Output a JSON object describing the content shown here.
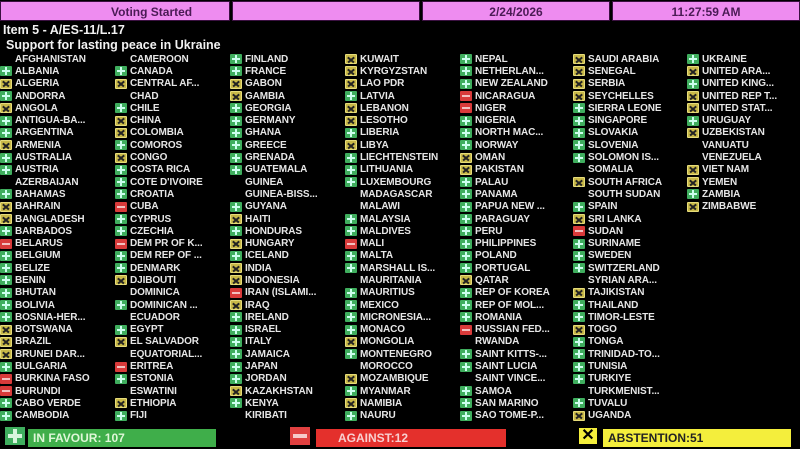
{
  "header": {
    "status": "Voting Started",
    "date": "2/24/2026",
    "time": "11:27:59 AM"
  },
  "item": "Item 5 - A/ES-11/L.17",
  "subject": "Support for lasting peace in Ukraine",
  "colors": {
    "yes": "#3fae5e",
    "no": "#d93a3a",
    "abstain": "#f4ee3c",
    "header": "#ee8cf0"
  },
  "columns": [
    [
      {
        "n": "AFGHANISTAN",
        "v": ""
      },
      {
        "n": "ALBANIA",
        "v": "Y"
      },
      {
        "n": "ALGERIA",
        "v": "A"
      },
      {
        "n": "ANDORRA",
        "v": "Y"
      },
      {
        "n": "ANGOLA",
        "v": "A"
      },
      {
        "n": "ANTIGUA-BA...",
        "v": "Y"
      },
      {
        "n": "ARGENTINA",
        "v": "Y"
      },
      {
        "n": "ARMENIA",
        "v": "A"
      },
      {
        "n": "AUSTRALIA",
        "v": "Y"
      },
      {
        "n": "AUSTRIA",
        "v": "Y"
      },
      {
        "n": "AZERBAIJAN",
        "v": ""
      },
      {
        "n": "BAHAMAS",
        "v": "Y"
      },
      {
        "n": "BAHRAIN",
        "v": "A"
      },
      {
        "n": "BANGLADESH",
        "v": "A"
      },
      {
        "n": "BARBADOS",
        "v": "Y"
      },
      {
        "n": "BELARUS",
        "v": "N"
      },
      {
        "n": "BELGIUM",
        "v": "Y"
      },
      {
        "n": "BELIZE",
        "v": "Y"
      },
      {
        "n": "BENIN",
        "v": "Y"
      },
      {
        "n": "BHUTAN",
        "v": "Y"
      },
      {
        "n": "BOLIVIA",
        "v": "Y"
      },
      {
        "n": "BOSNIA-HER...",
        "v": "Y"
      },
      {
        "n": "BOTSWANA",
        "v": "A"
      },
      {
        "n": "BRAZIL",
        "v": "A"
      },
      {
        "n": "BRUNEI DAR...",
        "v": "A"
      },
      {
        "n": "BULGARIA",
        "v": "Y"
      },
      {
        "n": "BURKINA FASO",
        "v": "N"
      },
      {
        "n": "BURUNDI",
        "v": "N"
      },
      {
        "n": "CABO VERDE",
        "v": "Y"
      },
      {
        "n": "CAMBODIA",
        "v": "Y"
      }
    ],
    [
      {
        "n": "CAMEROON",
        "v": ""
      },
      {
        "n": "CANADA",
        "v": "Y"
      },
      {
        "n": "CENTRAL AF...",
        "v": "A"
      },
      {
        "n": "CHAD",
        "v": ""
      },
      {
        "n": "CHILE",
        "v": "Y"
      },
      {
        "n": "CHINA",
        "v": "A"
      },
      {
        "n": "COLOMBIA",
        "v": "A"
      },
      {
        "n": "COMOROS",
        "v": "Y"
      },
      {
        "n": "CONGO",
        "v": "A"
      },
      {
        "n": "COSTA RICA",
        "v": "Y"
      },
      {
        "n": "COTE D'IVOIRE",
        "v": "Y"
      },
      {
        "n": "CROATIA",
        "v": "Y"
      },
      {
        "n": "CUBA",
        "v": "N"
      },
      {
        "n": "CYPRUS",
        "v": "Y"
      },
      {
        "n": "CZECHIA",
        "v": "Y"
      },
      {
        "n": "DEM PR OF K...",
        "v": "N"
      },
      {
        "n": "DEM REP OF ...",
        "v": "Y"
      },
      {
        "n": "DENMARK",
        "v": "Y"
      },
      {
        "n": "DJIBOUTI",
        "v": "A"
      },
      {
        "n": "DOMINICA",
        "v": ""
      },
      {
        "n": "DOMINICAN ...",
        "v": "Y"
      },
      {
        "n": "ECUADOR",
        "v": ""
      },
      {
        "n": "EGYPT",
        "v": "Y"
      },
      {
        "n": "EL SALVADOR",
        "v": "A"
      },
      {
        "n": "EQUATORIAL...",
        "v": ""
      },
      {
        "n": "ERITREA",
        "v": "N"
      },
      {
        "n": "ESTONIA",
        "v": "Y"
      },
      {
        "n": "ESWATINI",
        "v": ""
      },
      {
        "n": "ETHIOPIA",
        "v": "A"
      },
      {
        "n": "FIJI",
        "v": "Y"
      }
    ],
    [
      {
        "n": "FINLAND",
        "v": "Y"
      },
      {
        "n": "FRANCE",
        "v": "Y"
      },
      {
        "n": "GABON",
        "v": "A"
      },
      {
        "n": "GAMBIA",
        "v": "A"
      },
      {
        "n": "GEORGIA",
        "v": "Y"
      },
      {
        "n": "GERMANY",
        "v": "Y"
      },
      {
        "n": "GHANA",
        "v": "Y"
      },
      {
        "n": "GREECE",
        "v": "Y"
      },
      {
        "n": "GRENADA",
        "v": "Y"
      },
      {
        "n": "GUATEMALA",
        "v": "Y"
      },
      {
        "n": "GUINEA",
        "v": ""
      },
      {
        "n": "GUINEA-BISS...",
        "v": ""
      },
      {
        "n": "GUYANA",
        "v": "Y"
      },
      {
        "n": "HAITI",
        "v": "A"
      },
      {
        "n": "HONDURAS",
        "v": "Y"
      },
      {
        "n": "HUNGARY",
        "v": "A"
      },
      {
        "n": "ICELAND",
        "v": "Y"
      },
      {
        "n": "INDIA",
        "v": "A"
      },
      {
        "n": "INDONESIA",
        "v": "A"
      },
      {
        "n": "IRAN (ISLAMI...",
        "v": "N"
      },
      {
        "n": "IRAQ",
        "v": "A"
      },
      {
        "n": "IRELAND",
        "v": "Y"
      },
      {
        "n": "ISRAEL",
        "v": "Y"
      },
      {
        "n": "ITALY",
        "v": "Y"
      },
      {
        "n": "JAMAICA",
        "v": "Y"
      },
      {
        "n": "JAPAN",
        "v": "Y"
      },
      {
        "n": "JORDAN",
        "v": "Y"
      },
      {
        "n": "KAZAKHSTAN",
        "v": "A"
      },
      {
        "n": "KENYA",
        "v": "Y"
      },
      {
        "n": "KIRIBATI",
        "v": ""
      }
    ],
    [
      {
        "n": "KUWAIT",
        "v": "A"
      },
      {
        "n": "KYRGYZSTAN",
        "v": "A"
      },
      {
        "n": "LAO PDR",
        "v": "A"
      },
      {
        "n": "LATVIA",
        "v": "Y"
      },
      {
        "n": "LEBANON",
        "v": "A"
      },
      {
        "n": "LESOTHO",
        "v": "A"
      },
      {
        "n": "LIBERIA",
        "v": "Y"
      },
      {
        "n": "LIBYA",
        "v": "A"
      },
      {
        "n": "LIECHTENSTEIN",
        "v": "Y"
      },
      {
        "n": "LITHUANIA",
        "v": "Y"
      },
      {
        "n": "LUXEMBOURG",
        "v": "Y"
      },
      {
        "n": "MADAGASCAR",
        "v": ""
      },
      {
        "n": "MALAWI",
        "v": ""
      },
      {
        "n": "MALAYSIA",
        "v": "Y"
      },
      {
        "n": "MALDIVES",
        "v": "Y"
      },
      {
        "n": "MALI",
        "v": "N"
      },
      {
        "n": "MALTA",
        "v": "Y"
      },
      {
        "n": "MARSHALL IS...",
        "v": "Y"
      },
      {
        "n": "MAURITANIA",
        "v": ""
      },
      {
        "n": "MAURITIUS",
        "v": "Y"
      },
      {
        "n": "MEXICO",
        "v": "Y"
      },
      {
        "n": "MICRONESIA...",
        "v": "Y"
      },
      {
        "n": "MONACO",
        "v": "Y"
      },
      {
        "n": "MONGOLIA",
        "v": "A"
      },
      {
        "n": "MONTENEGRO",
        "v": "Y"
      },
      {
        "n": "MOROCCO",
        "v": ""
      },
      {
        "n": "MOZAMBIQUE",
        "v": "A"
      },
      {
        "n": "MYANMAR",
        "v": "Y"
      },
      {
        "n": "NAMIBIA",
        "v": "A"
      },
      {
        "n": "NAURU",
        "v": "Y"
      }
    ],
    [
      {
        "n": "NEPAL",
        "v": "Y"
      },
      {
        "n": "NETHERLAN...",
        "v": "Y"
      },
      {
        "n": "NEW ZEALAND",
        "v": "Y"
      },
      {
        "n": "NICARAGUA",
        "v": "N"
      },
      {
        "n": "NIGER",
        "v": "N"
      },
      {
        "n": "NIGERIA",
        "v": "Y"
      },
      {
        "n": "NORTH MAC...",
        "v": "Y"
      },
      {
        "n": "NORWAY",
        "v": "Y"
      },
      {
        "n": "OMAN",
        "v": "A"
      },
      {
        "n": "PAKISTAN",
        "v": "A"
      },
      {
        "n": "PALAU",
        "v": "Y"
      },
      {
        "n": "PANAMA",
        "v": "Y"
      },
      {
        "n": "PAPUA NEW ...",
        "v": "Y"
      },
      {
        "n": "PARAGUAY",
        "v": "Y"
      },
      {
        "n": "PERU",
        "v": "Y"
      },
      {
        "n": "PHILIPPINES",
        "v": "Y"
      },
      {
        "n": "POLAND",
        "v": "Y"
      },
      {
        "n": "PORTUGAL",
        "v": "Y"
      },
      {
        "n": "QATAR",
        "v": "A"
      },
      {
        "n": "REP OF KOREA",
        "v": "Y"
      },
      {
        "n": "REP OF MOL...",
        "v": "Y"
      },
      {
        "n": "ROMANIA",
        "v": "Y"
      },
      {
        "n": "RUSSIAN FED...",
        "v": "N"
      },
      {
        "n": "RWANDA",
        "v": ""
      },
      {
        "n": "SAINT KITTS-...",
        "v": "Y"
      },
      {
        "n": "SAINT LUCIA",
        "v": "Y"
      },
      {
        "n": "SAINT VINCE...",
        "v": ""
      },
      {
        "n": "SAMOA",
        "v": "Y"
      },
      {
        "n": "SAN MARINO",
        "v": "Y"
      },
      {
        "n": "SAO TOME-P...",
        "v": "Y"
      }
    ],
    [
      {
        "n": "SAUDI ARABIA",
        "v": "A"
      },
      {
        "n": "SENEGAL",
        "v": "A"
      },
      {
        "n": "SERBIA",
        "v": "A"
      },
      {
        "n": "SEYCHELLES",
        "v": "A"
      },
      {
        "n": "SIERRA LEONE",
        "v": "Y"
      },
      {
        "n": "SINGAPORE",
        "v": "Y"
      },
      {
        "n": "SLOVAKIA",
        "v": "Y"
      },
      {
        "n": "SLOVENIA",
        "v": "Y"
      },
      {
        "n": "SOLOMON IS...",
        "v": "Y"
      },
      {
        "n": "SOMALIA",
        "v": ""
      },
      {
        "n": "SOUTH AFRICA",
        "v": "A"
      },
      {
        "n": "SOUTH SUDAN",
        "v": ""
      },
      {
        "n": "SPAIN",
        "v": "Y"
      },
      {
        "n": "SRI LANKA",
        "v": "A"
      },
      {
        "n": "SUDAN",
        "v": "N"
      },
      {
        "n": "SURINAME",
        "v": "Y"
      },
      {
        "n": "SWEDEN",
        "v": "Y"
      },
      {
        "n": "SWITZERLAND",
        "v": "Y"
      },
      {
        "n": "SYRIAN ARA...",
        "v": ""
      },
      {
        "n": "TAJIKISTAN",
        "v": "A"
      },
      {
        "n": "THAILAND",
        "v": "Y"
      },
      {
        "n": "TIMOR-LESTE",
        "v": "Y"
      },
      {
        "n": "TOGO",
        "v": "A"
      },
      {
        "n": "TONGA",
        "v": "Y"
      },
      {
        "n": "TRINIDAD-TO...",
        "v": "Y"
      },
      {
        "n": "TUNISIA",
        "v": "Y"
      },
      {
        "n": "TURKIYE",
        "v": "Y"
      },
      {
        "n": "TURKMENIST...",
        "v": ""
      },
      {
        "n": "TUVALU",
        "v": "Y"
      },
      {
        "n": "UGANDA",
        "v": "A"
      }
    ],
    [
      {
        "n": "UKRAINE",
        "v": "Y"
      },
      {
        "n": "UNITED ARA...",
        "v": "A"
      },
      {
        "n": "UNITED KING...",
        "v": "Y"
      },
      {
        "n": "UNITED REP T...",
        "v": "A"
      },
      {
        "n": "UNITED STAT...",
        "v": "A"
      },
      {
        "n": "URUGUAY",
        "v": "Y"
      },
      {
        "n": "UZBEKISTAN",
        "v": "A"
      },
      {
        "n": "VANUATU",
        "v": ""
      },
      {
        "n": "VENEZUELA",
        "v": ""
      },
      {
        "n": "VIET NAM",
        "v": "A"
      },
      {
        "n": "YEMEN",
        "v": "A"
      },
      {
        "n": "ZAMBIA",
        "v": "Y"
      },
      {
        "n": "ZIMBABWE",
        "v": "A"
      }
    ]
  ],
  "totals": {
    "in_favour": "IN FAVOUR: 107",
    "against": "AGAINST:12",
    "abstention": "ABSTENTION:51"
  }
}
